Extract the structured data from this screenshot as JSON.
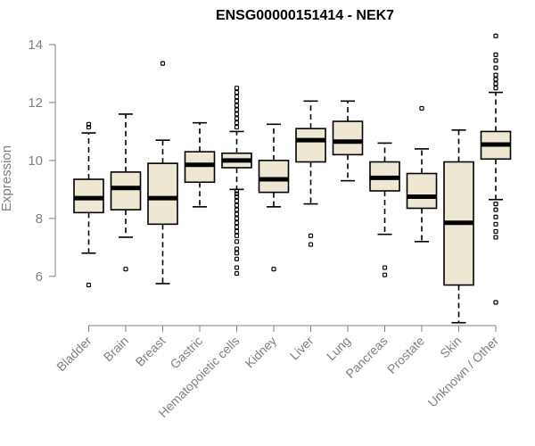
{
  "chart_data": {
    "type": "box",
    "title": "ENSG00000151414 - NEK7",
    "ylabel": "Expression",
    "xlabel": "",
    "ylim": [
      4.3,
      14.4
    ],
    "yticks": [
      6,
      8,
      10,
      12,
      14
    ],
    "box_color": "#EEE8D2",
    "categories": [
      "Bladder",
      "Brain",
      "Breast",
      "Gastric",
      "Hematopoietic cells",
      "Kidney",
      "Liver",
      "Lung",
      "Pancreas",
      "Prostate",
      "Skin",
      "Unknown / Other"
    ],
    "boxes": [
      {
        "whisker_low": 6.8,
        "q1": 8.2,
        "median": 8.7,
        "q3": 9.35,
        "whisker_high": 10.95,
        "outliers": [
          5.7,
          11.15,
          11.25
        ]
      },
      {
        "whisker_low": 7.35,
        "q1": 8.3,
        "median": 9.05,
        "q3": 9.6,
        "whisker_high": 11.6,
        "outliers": [
          6.25
        ]
      },
      {
        "whisker_low": 5.75,
        "q1": 7.8,
        "median": 8.7,
        "q3": 9.9,
        "whisker_high": 10.7,
        "outliers": [
          13.35
        ]
      },
      {
        "whisker_low": 8.4,
        "q1": 9.25,
        "median": 9.85,
        "q3": 10.3,
        "whisker_high": 11.3,
        "outliers": []
      },
      {
        "whisker_low": 9.0,
        "q1": 9.75,
        "median": 10.0,
        "q3": 10.25,
        "whisker_high": 11.0,
        "outliers": [
          6.1,
          6.3,
          6.6,
          6.8,
          6.95,
          7.2,
          7.4,
          7.55,
          7.7,
          7.85,
          8.0,
          8.15,
          8.3,
          8.45,
          8.6,
          8.75,
          8.85,
          8.95,
          11.15,
          11.3,
          11.45,
          11.6,
          11.75,
          11.9,
          12.05,
          12.2,
          12.35,
          12.5
        ]
      },
      {
        "whisker_low": 8.4,
        "q1": 8.9,
        "median": 9.35,
        "q3": 10.0,
        "whisker_high": 11.25,
        "outliers": [
          6.25
        ]
      },
      {
        "whisker_low": 8.5,
        "q1": 9.95,
        "median": 10.7,
        "q3": 11.1,
        "whisker_high": 12.05,
        "outliers": [
          7.1,
          7.4
        ]
      },
      {
        "whisker_low": 9.3,
        "q1": 10.2,
        "median": 10.65,
        "q3": 11.35,
        "whisker_high": 12.05,
        "outliers": []
      },
      {
        "whisker_low": 7.45,
        "q1": 8.95,
        "median": 9.4,
        "q3": 9.95,
        "whisker_high": 10.6,
        "outliers": [
          6.05,
          6.3
        ]
      },
      {
        "whisker_low": 7.2,
        "q1": 8.35,
        "median": 8.75,
        "q3": 9.55,
        "whisker_high": 10.4,
        "outliers": [
          11.8
        ]
      },
      {
        "whisker_low": 4.4,
        "q1": 5.7,
        "median": 7.85,
        "q3": 9.95,
        "whisker_high": 11.05,
        "outliers": []
      },
      {
        "whisker_low": 8.65,
        "q1": 10.05,
        "median": 10.55,
        "q3": 11.0,
        "whisker_high": 12.35,
        "outliers": [
          5.1,
          7.35,
          7.55,
          7.8,
          8.05,
          8.3,
          8.5,
          12.5,
          12.65,
          12.8,
          12.95,
          13.2,
          13.45,
          13.65,
          14.3
        ]
      }
    ]
  }
}
